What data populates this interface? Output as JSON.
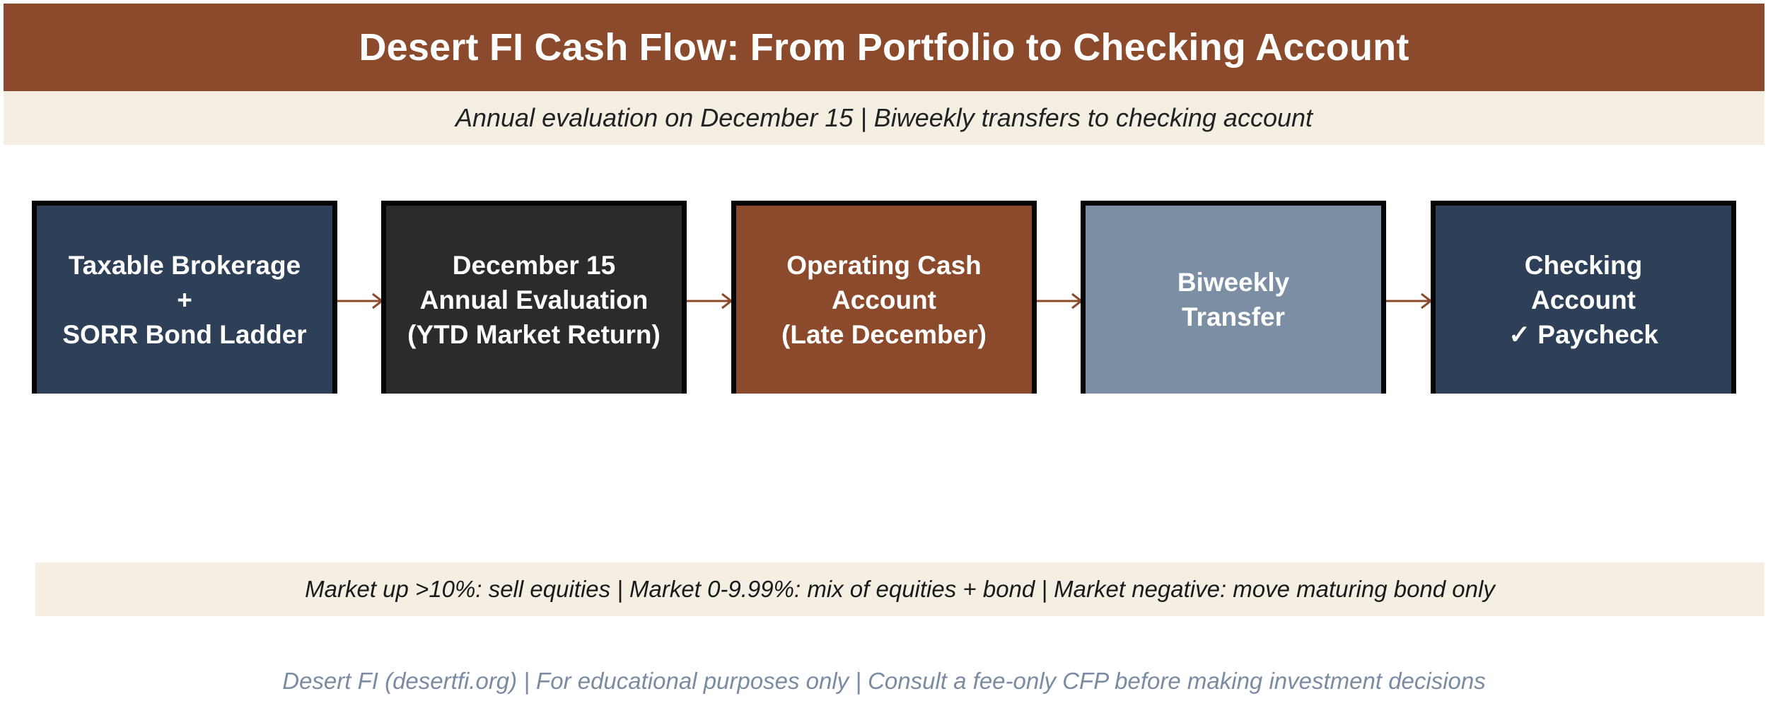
{
  "title": "Desert FI Cash Flow: From Portfolio to Checking Account",
  "subtitle": "Annual evaluation on December 15  |  Biweekly transfers to checking account",
  "colors": {
    "brown": "#8b4a2b",
    "navy": "#2e3f58",
    "charcoal": "#2b2b29",
    "slate": "#7b8ea4",
    "cream": "#f4eee3",
    "footer_gray": "#7b8ba1"
  },
  "flow": {
    "steps": [
      {
        "label": "Taxable Brokerage\n+\nSORR Bond Ladder",
        "color": "#2e3f58"
      },
      {
        "label": "December 15\nAnnual Evaluation\n(YTD Market Return)",
        "color": "#2b2b29"
      },
      {
        "label": "Operating Cash\nAccount\n(Late December)",
        "color": "#8b4a2b"
      },
      {
        "label": "Biweekly\nTransfer",
        "color": "#7b8ea4"
      },
      {
        "label": "Checking\nAccount\n✓ Paycheck",
        "color": "#2e3f58"
      }
    ],
    "arrow_color": "#8b4a2b"
  },
  "rules": "Market up >10%: sell equities  |  Market 0-9.99%: mix of equities + bond  |  Market negative: move maturing bond only",
  "footer": "Desert FI (desertfi.org)  |  For educational purposes only  |  Consult a fee-only CFP before making investment decisions"
}
